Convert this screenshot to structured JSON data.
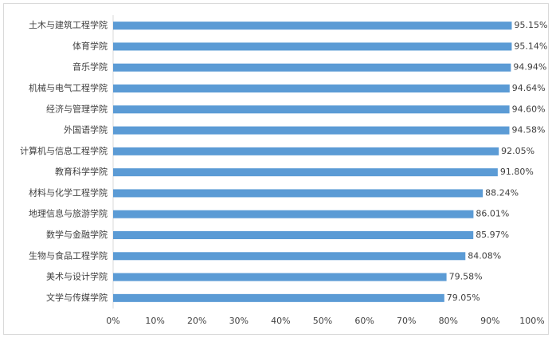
{
  "chart_data": {
    "type": "bar",
    "orientation": "horizontal",
    "color": "#5b9bd5",
    "categories": [
      "土木与建筑工程学院",
      "体育学院",
      "音乐学院",
      "机械与电气工程学院",
      "经济与管理学院",
      "外国语学院",
      "计算机与信息工程学院",
      "教育科学学院",
      "材料与化学工程学院",
      "地理信息与旅游学院",
      "数学与金融学院",
      "生物与食品工程学院",
      "美术与设计学院",
      "文学与传媒学院"
    ],
    "values": [
      95.15,
      95.14,
      94.94,
      94.64,
      94.6,
      94.58,
      92.05,
      91.8,
      88.24,
      86.01,
      85.97,
      84.08,
      79.58,
      79.05
    ],
    "value_labels": [
      "95.15%",
      "95.14%",
      "94.94%",
      "94.64%",
      "94.60%",
      "94.58%",
      "92.05%",
      "91.80%",
      "88.24%",
      "86.01%",
      "85.97%",
      "84.08%",
      "79.58%",
      "79.05%"
    ],
    "xlim": [
      0,
      100
    ],
    "xticks": [
      {
        "value": 0,
        "label": "0%"
      },
      {
        "value": 10,
        "label": "10%"
      },
      {
        "value": 20,
        "label": "20%"
      },
      {
        "value": 30,
        "label": "30%"
      },
      {
        "value": 40,
        "label": "40%"
      },
      {
        "value": 50,
        "label": "50%"
      },
      {
        "value": 60,
        "label": "60%"
      },
      {
        "value": 70,
        "label": "70%"
      },
      {
        "value": 80,
        "label": "80%"
      },
      {
        "value": 90,
        "label": "90%"
      },
      {
        "value": 100,
        "label": "100%"
      }
    ],
    "grid": false
  }
}
